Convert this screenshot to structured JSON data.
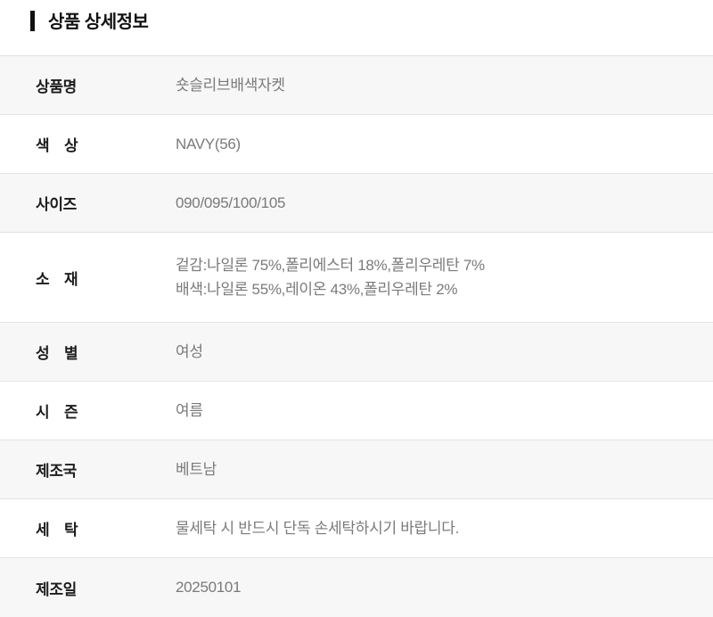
{
  "page": {
    "title": "상품 상세정보"
  },
  "table": {
    "rows": [
      {
        "label": "상품명",
        "value": "숏슬리브배색자켓"
      },
      {
        "label": "색　상",
        "value": "NAVY(56)"
      },
      {
        "label": "사이즈",
        "value": "090/095/100/105"
      },
      {
        "label": "소　재",
        "value": "겉감:나일론 75%,폴리에스터 18%,폴리우레탄 7%\n배색:나일론 55%,레이온 43%,폴리우레탄 2%"
      },
      {
        "label": "성　별",
        "value": "여성"
      },
      {
        "label": "시　즌",
        "value": "여름"
      },
      {
        "label": "제조국",
        "value": "베트남"
      },
      {
        "label": "세　탁",
        "value": "물세탁 시 반드시 단독 손세탁하시기 바랍니다."
      },
      {
        "label": "제조일",
        "value": "20250101"
      }
    ]
  },
  "colors": {
    "row_alt_bg": "#f7f7f7",
    "row_bg": "#ffffff",
    "divider": "#e4e4e4",
    "label_text": "#1c1c1c",
    "value_text": "#7a7a7a",
    "title_text": "#111111",
    "accent_bar": "#111111"
  }
}
